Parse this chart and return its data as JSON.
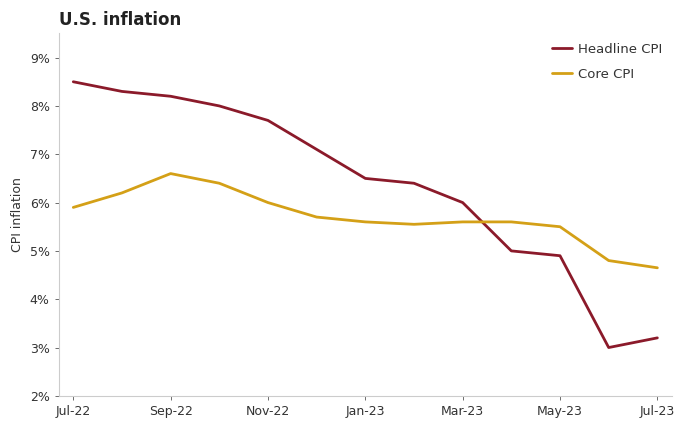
{
  "title": "U.S. inflation",
  "ylabel": "CPI inflation",
  "x_labels": [
    "Jul-22",
    "Sep-22",
    "Nov-22",
    "Jan-23",
    "Mar-23",
    "May-23",
    "Jul-23"
  ],
  "headline_cpi": {
    "label": "Headline CPI",
    "color": "#8B1A2A",
    "linewidth": 2.0,
    "x": [
      0,
      1,
      2,
      3,
      4,
      5,
      6,
      7,
      8,
      9,
      10,
      11,
      12
    ],
    "y": [
      8.5,
      8.3,
      8.2,
      8.0,
      7.7,
      7.1,
      6.5,
      6.4,
      6.0,
      5.0,
      4.9,
      3.0,
      3.2
    ]
  },
  "core_cpi": {
    "label": "Core CPI",
    "color": "#D4A017",
    "linewidth": 2.0,
    "x": [
      0,
      1,
      2,
      3,
      4,
      5,
      6,
      7,
      8,
      9,
      10,
      11,
      12
    ],
    "y": [
      5.9,
      6.2,
      6.6,
      6.4,
      6.0,
      5.7,
      5.6,
      5.55,
      5.6,
      5.6,
      5.5,
      4.8,
      4.65
    ]
  },
  "ylim": [
    2.0,
    9.5
  ],
  "yticks": [
    2,
    3,
    4,
    5,
    6,
    7,
    8,
    9
  ],
  "tick_positions": [
    0,
    2,
    4,
    6,
    8,
    10,
    12
  ],
  "background_color": "#ffffff",
  "title_fontsize": 12,
  "axis_fontsize": 9,
  "legend_fontsize": 9.5,
  "spine_color": "#cccccc",
  "tick_color": "#888888"
}
